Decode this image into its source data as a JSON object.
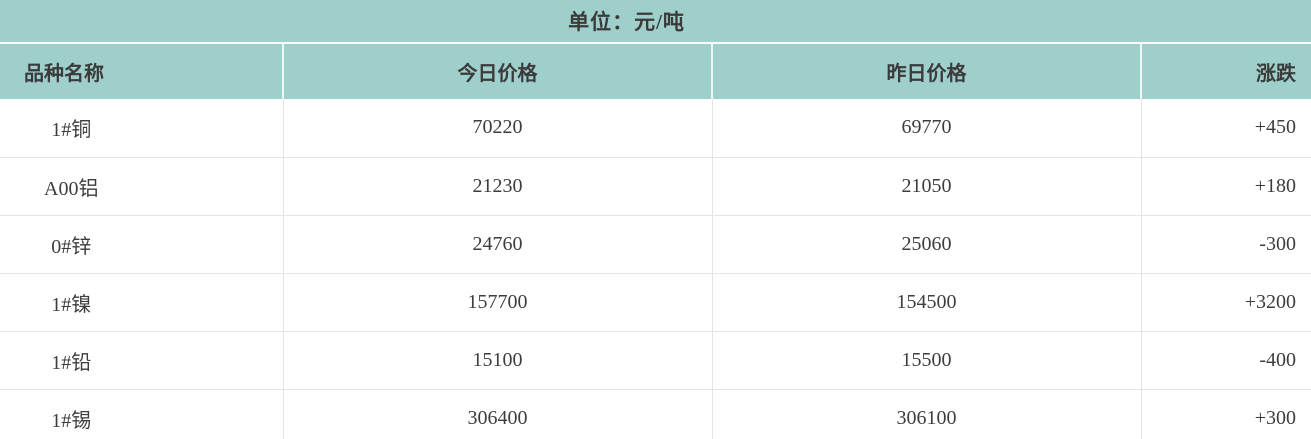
{
  "unit_bar": {
    "text": "单位：元/吨"
  },
  "table": {
    "columns": [
      {
        "key": "name",
        "label": "品种名称"
      },
      {
        "key": "today",
        "label": "今日价格"
      },
      {
        "key": "yesterday",
        "label": "昨日价格"
      },
      {
        "key": "change",
        "label": "涨跌"
      }
    ],
    "rows": [
      {
        "name": "1#铜",
        "today": "70220",
        "yesterday": "69770",
        "change": "+450"
      },
      {
        "name": "A00铝",
        "today": "21230",
        "yesterday": "21050",
        "change": "+180"
      },
      {
        "name": "0#锌",
        "today": "24760",
        "yesterday": "25060",
        "change": "-300"
      },
      {
        "name": "1#镍",
        "today": "157700",
        "yesterday": "154500",
        "change": "+3200"
      },
      {
        "name": "1#铅",
        "today": "15100",
        "yesterday": "15500",
        "change": "-400"
      },
      {
        "name": "1#锡",
        "today": "306400",
        "yesterday": "306100",
        "change": "+300"
      }
    ]
  },
  "colors": {
    "header_teal": "#9ecfcb",
    "text": "#3d3d3d",
    "divider": "#e4e4e4",
    "row_background": "#ffffff"
  }
}
